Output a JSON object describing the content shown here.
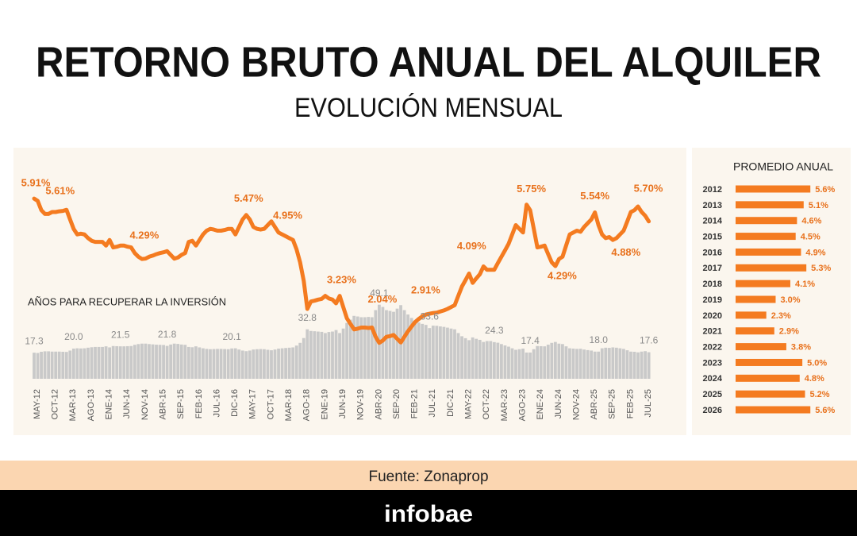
{
  "chart_data": [
    {
      "type": "line",
      "title": "RETORNO BRUTO ANUAL DEL ALQUILER",
      "subtitle": "EVOLUCIÓN MENSUAL",
      "categories": [
        "MAY-12",
        null,
        null,
        null,
        null,
        "OCT-12",
        null,
        null,
        null,
        null,
        "MAR-13",
        null,
        null,
        null,
        null,
        "AGO-13",
        null,
        null,
        null,
        null,
        "ENE-14",
        null,
        null,
        null,
        null,
        "JUN-14",
        null,
        null,
        null,
        null,
        "NOV-14",
        null,
        null,
        null,
        null,
        "ABR-15",
        null,
        null,
        null,
        null,
        "SEP-15",
        null,
        null,
        null,
        null,
        "FEB-16",
        null,
        null,
        null,
        null,
        "JUL-16",
        null,
        null,
        null,
        null,
        "DIC-16",
        null,
        null,
        null,
        null,
        "MAY-17",
        null,
        null,
        null,
        null,
        "OCT-17",
        null,
        null,
        null,
        null,
        "MAR-18",
        null,
        null,
        null,
        null,
        "AGO-18",
        null,
        null,
        null,
        null,
        "ENE-19",
        null,
        null,
        null,
        null,
        "JUN-19",
        null,
        null,
        null,
        null,
        "NOV-19",
        null,
        null,
        null,
        null,
        "ABR-20",
        null,
        null,
        null,
        null,
        "SEP-20",
        null,
        null,
        null,
        null,
        "FEB-21",
        null,
        null,
        null,
        null,
        "JUL-21",
        null,
        null,
        null,
        null,
        "DIC-21",
        null,
        null,
        null,
        null,
        "MAY-22",
        null,
        null,
        null,
        null,
        "OCT-22",
        null,
        null,
        null,
        null,
        "MAR-23",
        null,
        null,
        null,
        null,
        "AGO-23",
        null,
        null,
        null,
        null,
        "ENE-24",
        null,
        null,
        null,
        null,
        "JUN-24",
        null,
        null,
        null,
        null,
        "NOV-24",
        null,
        null,
        null,
        null,
        "ABR-25",
        null,
        null,
        null,
        null,
        "SEP-25",
        null,
        null,
        null,
        null,
        "FEB-25",
        null,
        null,
        null,
        null,
        "JUL-25",
        null
      ],
      "ylim": [
        1.8,
        7.0
      ],
      "y2lim": [
        0,
        50
      ],
      "series": [
        {
          "type": "line",
          "color": "#f47b20",
          "values": [
            5.91,
            5.85,
            5.6,
            5.5,
            5.5,
            5.55,
            5.55,
            5.57,
            5.58,
            5.61,
            5.35,
            5.1,
            4.95,
            4.97,
            4.95,
            4.85,
            4.78,
            4.75,
            4.75,
            4.75,
            4.65,
            4.8,
            4.6,
            4.62,
            4.65,
            4.65,
            4.62,
            4.6,
            4.45,
            4.35,
            4.29,
            4.3,
            4.35,
            4.38,
            4.42,
            4.45,
            4.47,
            4.5,
            4.4,
            4.3,
            4.33,
            4.4,
            4.45,
            4.75,
            4.78,
            4.65,
            4.8,
            4.95,
            5.05,
            5.1,
            5.08,
            5.05,
            5.05,
            5.07,
            5.1,
            5.1,
            4.95,
            5.15,
            5.35,
            5.47,
            5.35,
            5.15,
            5.1,
            5.08,
            5.1,
            5.2,
            5.3,
            5.15,
            5.0,
            4.95,
            4.9,
            4.85,
            4.8,
            4.55,
            4.2,
            3.7,
            2.95,
            3.15,
            3.17,
            3.2,
            3.22,
            3.3,
            3.23,
            3.2,
            3.1,
            3.3,
            3.0,
            2.7,
            2.55,
            2.4,
            2.42,
            2.45,
            2.45,
            2.44,
            2.45,
            2.2,
            2.04,
            2.1,
            2.2,
            2.22,
            2.25,
            2.15,
            2.05,
            2.2,
            2.35,
            2.48,
            2.6,
            2.68,
            2.75,
            2.8,
            2.82,
            2.84,
            2.85,
            2.88,
            2.91,
            2.95,
            3.0,
            3.05,
            3.3,
            3.55,
            3.72,
            3.9,
            3.65,
            3.77,
            3.88,
            4.09,
            4.0,
            4.0,
            4.0,
            4.18,
            4.35,
            4.52,
            4.7,
            4.95,
            5.2,
            5.1,
            5.0,
            5.75,
            5.6,
            5.1,
            4.6,
            4.62,
            4.65,
            4.42,
            4.2,
            4.1,
            4.29,
            4.35,
            4.65,
            4.95,
            5.0,
            5.05,
            5.02,
            5.15,
            5.25,
            5.35,
            5.54,
            5.2,
            4.95,
            4.85,
            4.88,
            4.8,
            4.85,
            4.95,
            5.05,
            5.3,
            5.55,
            5.6,
            5.7,
            5.55,
            5.45,
            5.3
          ],
          "annotations": [
            {
              "index": 0,
              "label": "5.91%"
            },
            {
              "index": 9,
              "label": "5.61%"
            },
            {
              "index": 30,
              "label": "4.29%"
            },
            {
              "index": 59,
              "label": "5.47%"
            },
            {
              "index": 69,
              "label": "4.95%"
            },
            {
              "index": 82,
              "label": "3.23%"
            },
            {
              "index": 96,
              "label": "2.04%"
            },
            {
              "index": 114,
              "label": "2.91%"
            },
            {
              "index": 125,
              "label": "4.09%"
            },
            {
              "index": 137,
              "label": "5.75%"
            },
            {
              "index": 146,
              "label": "4.29%"
            },
            {
              "index": 156,
              "label": "5.54%"
            },
            {
              "index": 160,
              "label": "4.88%"
            },
            {
              "index": 168,
              "label": "5.70%"
            }
          ]
        },
        {
          "type": "bar",
          "axis": "y2",
          "name": "AÑOS PARA RECUPERAR LA INVERSIÓN",
          "color": "#c9c9c9",
          "values": [
            17.3,
            17.1,
            17.9,
            18.2,
            18.2,
            18.0,
            18.0,
            18.0,
            17.9,
            17.8,
            18.7,
            20.0,
            20.2,
            20.1,
            20.2,
            20.6,
            20.9,
            21.1,
            21.1,
            21.1,
            21.5,
            20.8,
            21.7,
            21.6,
            21.5,
            21.5,
            21.6,
            21.7,
            22.5,
            23.0,
            23.3,
            23.3,
            23.0,
            22.8,
            22.6,
            22.5,
            22.4,
            21.8,
            22.7,
            23.3,
            23.1,
            22.7,
            22.5,
            21.1,
            20.9,
            21.5,
            20.8,
            20.2,
            19.8,
            19.6,
            19.7,
            19.8,
            19.8,
            19.7,
            19.6,
            20.1,
            20.2,
            19.4,
            18.7,
            18.3,
            18.7,
            19.4,
            19.6,
            19.7,
            19.6,
            19.2,
            18.9,
            19.4,
            20.0,
            20.2,
            20.4,
            20.6,
            20.8,
            22.0,
            23.8,
            27.0,
            32.8,
            31.7,
            31.5,
            31.3,
            31.1,
            30.3,
            31.0,
            31.3,
            32.3,
            30.3,
            33.3,
            37.0,
            39.2,
            41.7,
            41.3,
            40.8,
            40.8,
            41.0,
            40.8,
            45.5,
            49.1,
            47.6,
            45.5,
            45.0,
            44.4,
            46.5,
            48.8,
            45.5,
            42.6,
            40.3,
            38.5,
            37.3,
            36.4,
            35.7,
            33.6,
            35.2,
            35.1,
            34.7,
            34.4,
            33.9,
            33.3,
            32.8,
            30.3,
            28.2,
            26.9,
            25.6,
            27.4,
            26.5,
            25.8,
            24.4,
            25.0,
            25.0,
            24.3,
            23.9,
            23.0,
            22.1,
            21.3,
            20.2,
            19.2,
            19.6,
            20.0,
            17.4,
            17.4,
            19.6,
            21.7,
            21.6,
            21.5,
            22.6,
            23.8,
            24.4,
            23.3,
            23.0,
            21.5,
            20.2,
            20.0,
            19.8,
            19.9,
            19.4,
            19.0,
            18.7,
            18.0,
            18.0,
            20.2,
            20.6,
            20.5,
            20.8,
            20.6,
            20.2,
            19.8,
            18.9,
            18.0,
            17.9,
            17.5,
            18.0,
            18.3,
            17.6
          ],
          "annotations": [
            {
              "index": 0,
              "label": "17.3"
            },
            {
              "index": 11,
              "label": "20.0"
            },
            {
              "index": 24,
              "label": "21.5"
            },
            {
              "index": 37,
              "label": "21.8"
            },
            {
              "index": 55,
              "label": "20.1"
            },
            {
              "index": 76,
              "label": "32.8"
            },
            {
              "index": 96,
              "label": "49.1"
            },
            {
              "index": 110,
              "label": "33.6"
            },
            {
              "index": 128,
              "label": "24.3"
            },
            {
              "index": 138,
              "label": "17.4"
            },
            {
              "index": 157,
              "label": "18.0"
            },
            {
              "index": 171,
              "label": "17.6"
            }
          ]
        }
      ]
    },
    {
      "type": "hbar",
      "title": "PROMEDIO ANUAL",
      "categories": [
        "2012",
        "2013",
        "2014",
        "2015",
        "2016",
        "2017",
        "2018",
        "2019",
        "2020",
        "2021",
        "2022",
        "2023",
        "2024",
        "2025",
        "2026"
      ],
      "values": [
        5.6,
        5.1,
        4.6,
        4.5,
        4.9,
        5.3,
        4.1,
        3.0,
        2.3,
        2.9,
        3.8,
        5.0,
        4.8,
        5.2,
        5.6
      ],
      "value_labels": [
        "5.6%",
        "5.1%",
        "4.6%",
        "4.5%",
        "4.9%",
        "5.3%",
        "4.1%",
        "3.0%",
        "2.3%",
        "2.9%",
        "3.8%",
        "5.0%",
        "4.8%",
        "5.2%",
        "5.6%"
      ],
      "color": "#f47b20",
      "xlim": [
        0,
        8.5
      ]
    }
  ],
  "footer": {
    "source": "Fuente: Zonaprop",
    "brand": "infobae"
  }
}
